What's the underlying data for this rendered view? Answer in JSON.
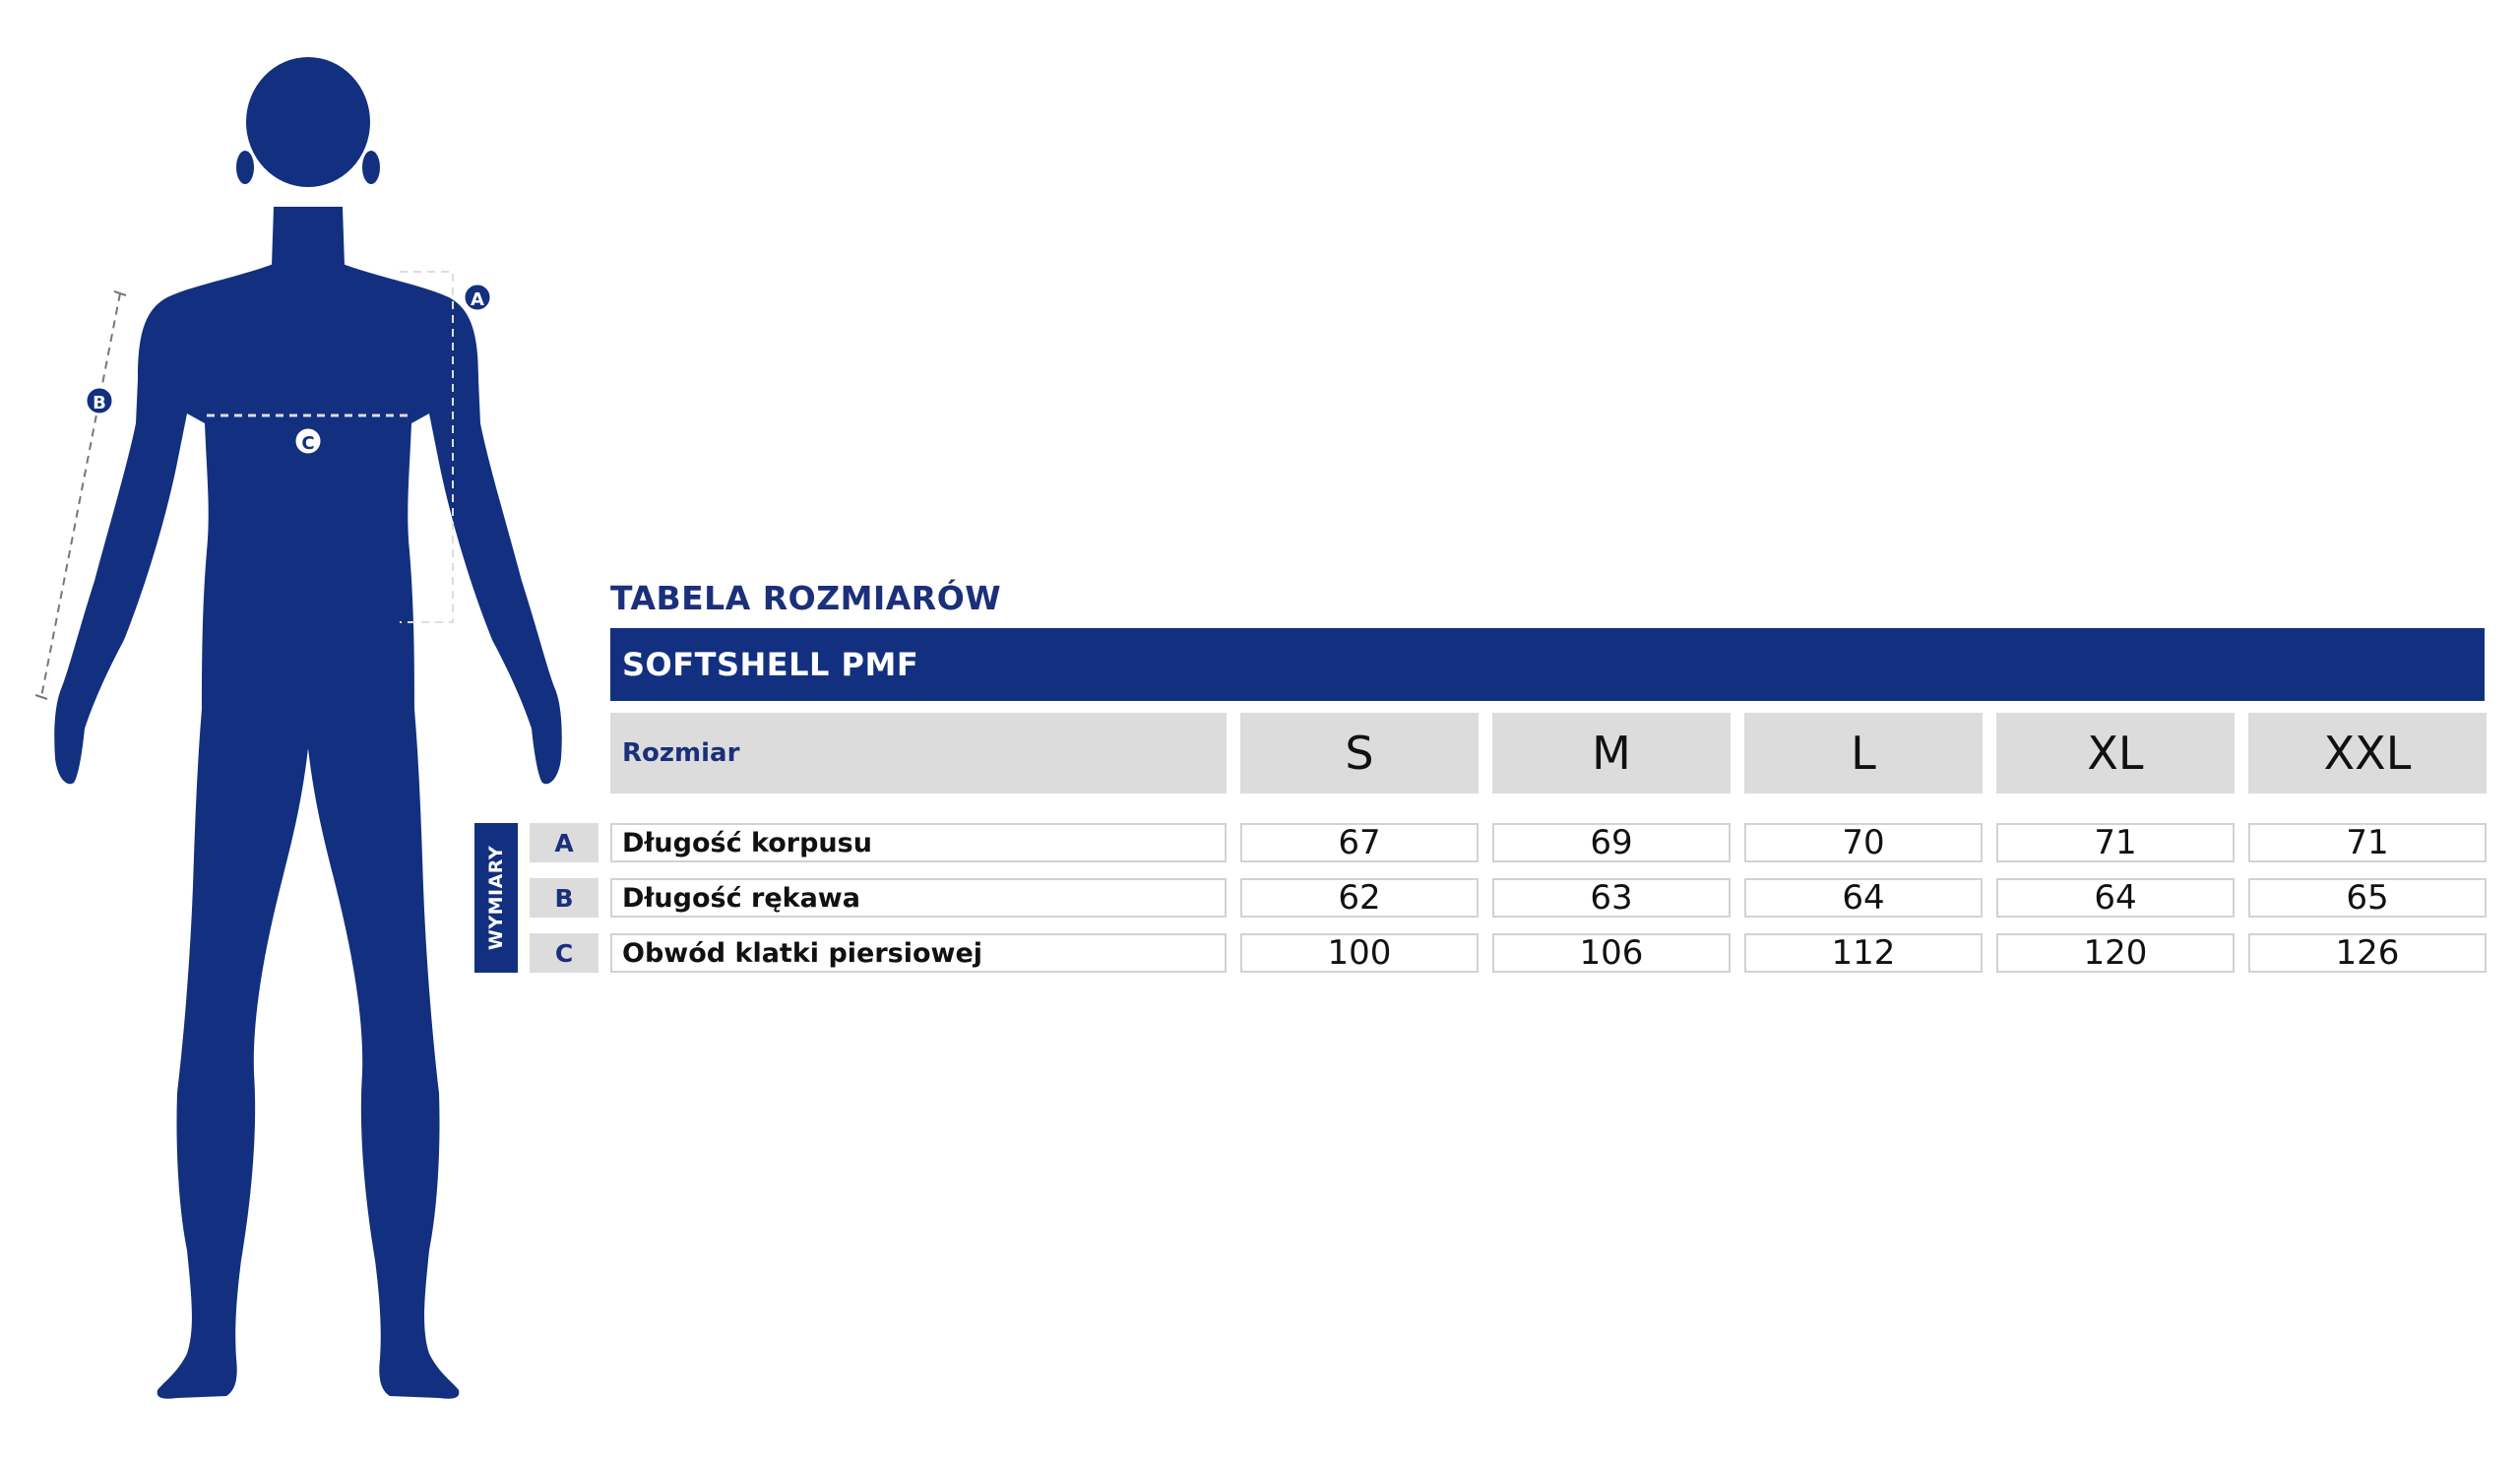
{
  "figure": {
    "labels": [
      "A",
      "B",
      "C"
    ],
    "colors": {
      "body": "#12307f",
      "dash": "#777777",
      "marker": "#12307f"
    }
  },
  "table": {
    "title": "TABELA ROZMIARÓW",
    "product": "SOFTSHELL PMF",
    "size_header": "Rozmiar",
    "side_label": "WYMIARY",
    "sizes": [
      "S",
      "M",
      "L",
      "XL",
      "XXL"
    ],
    "rows": [
      {
        "letter": "A",
        "name": "Długość korpusu",
        "values": [
          "67",
          "69",
          "70",
          "71",
          "71"
        ]
      },
      {
        "letter": "B",
        "name": "Długość rękawa",
        "values": [
          "62",
          "63",
          "64",
          "64",
          "65"
        ]
      },
      {
        "letter": "C",
        "name": "Obwód klatki piersiowej",
        "values": [
          "100",
          "106",
          "112",
          "120",
          "126"
        ]
      }
    ],
    "colors": {
      "header_bg": "#12307f",
      "cell_bg": "#dcdcdc",
      "title": "#1b2f7a"
    }
  }
}
